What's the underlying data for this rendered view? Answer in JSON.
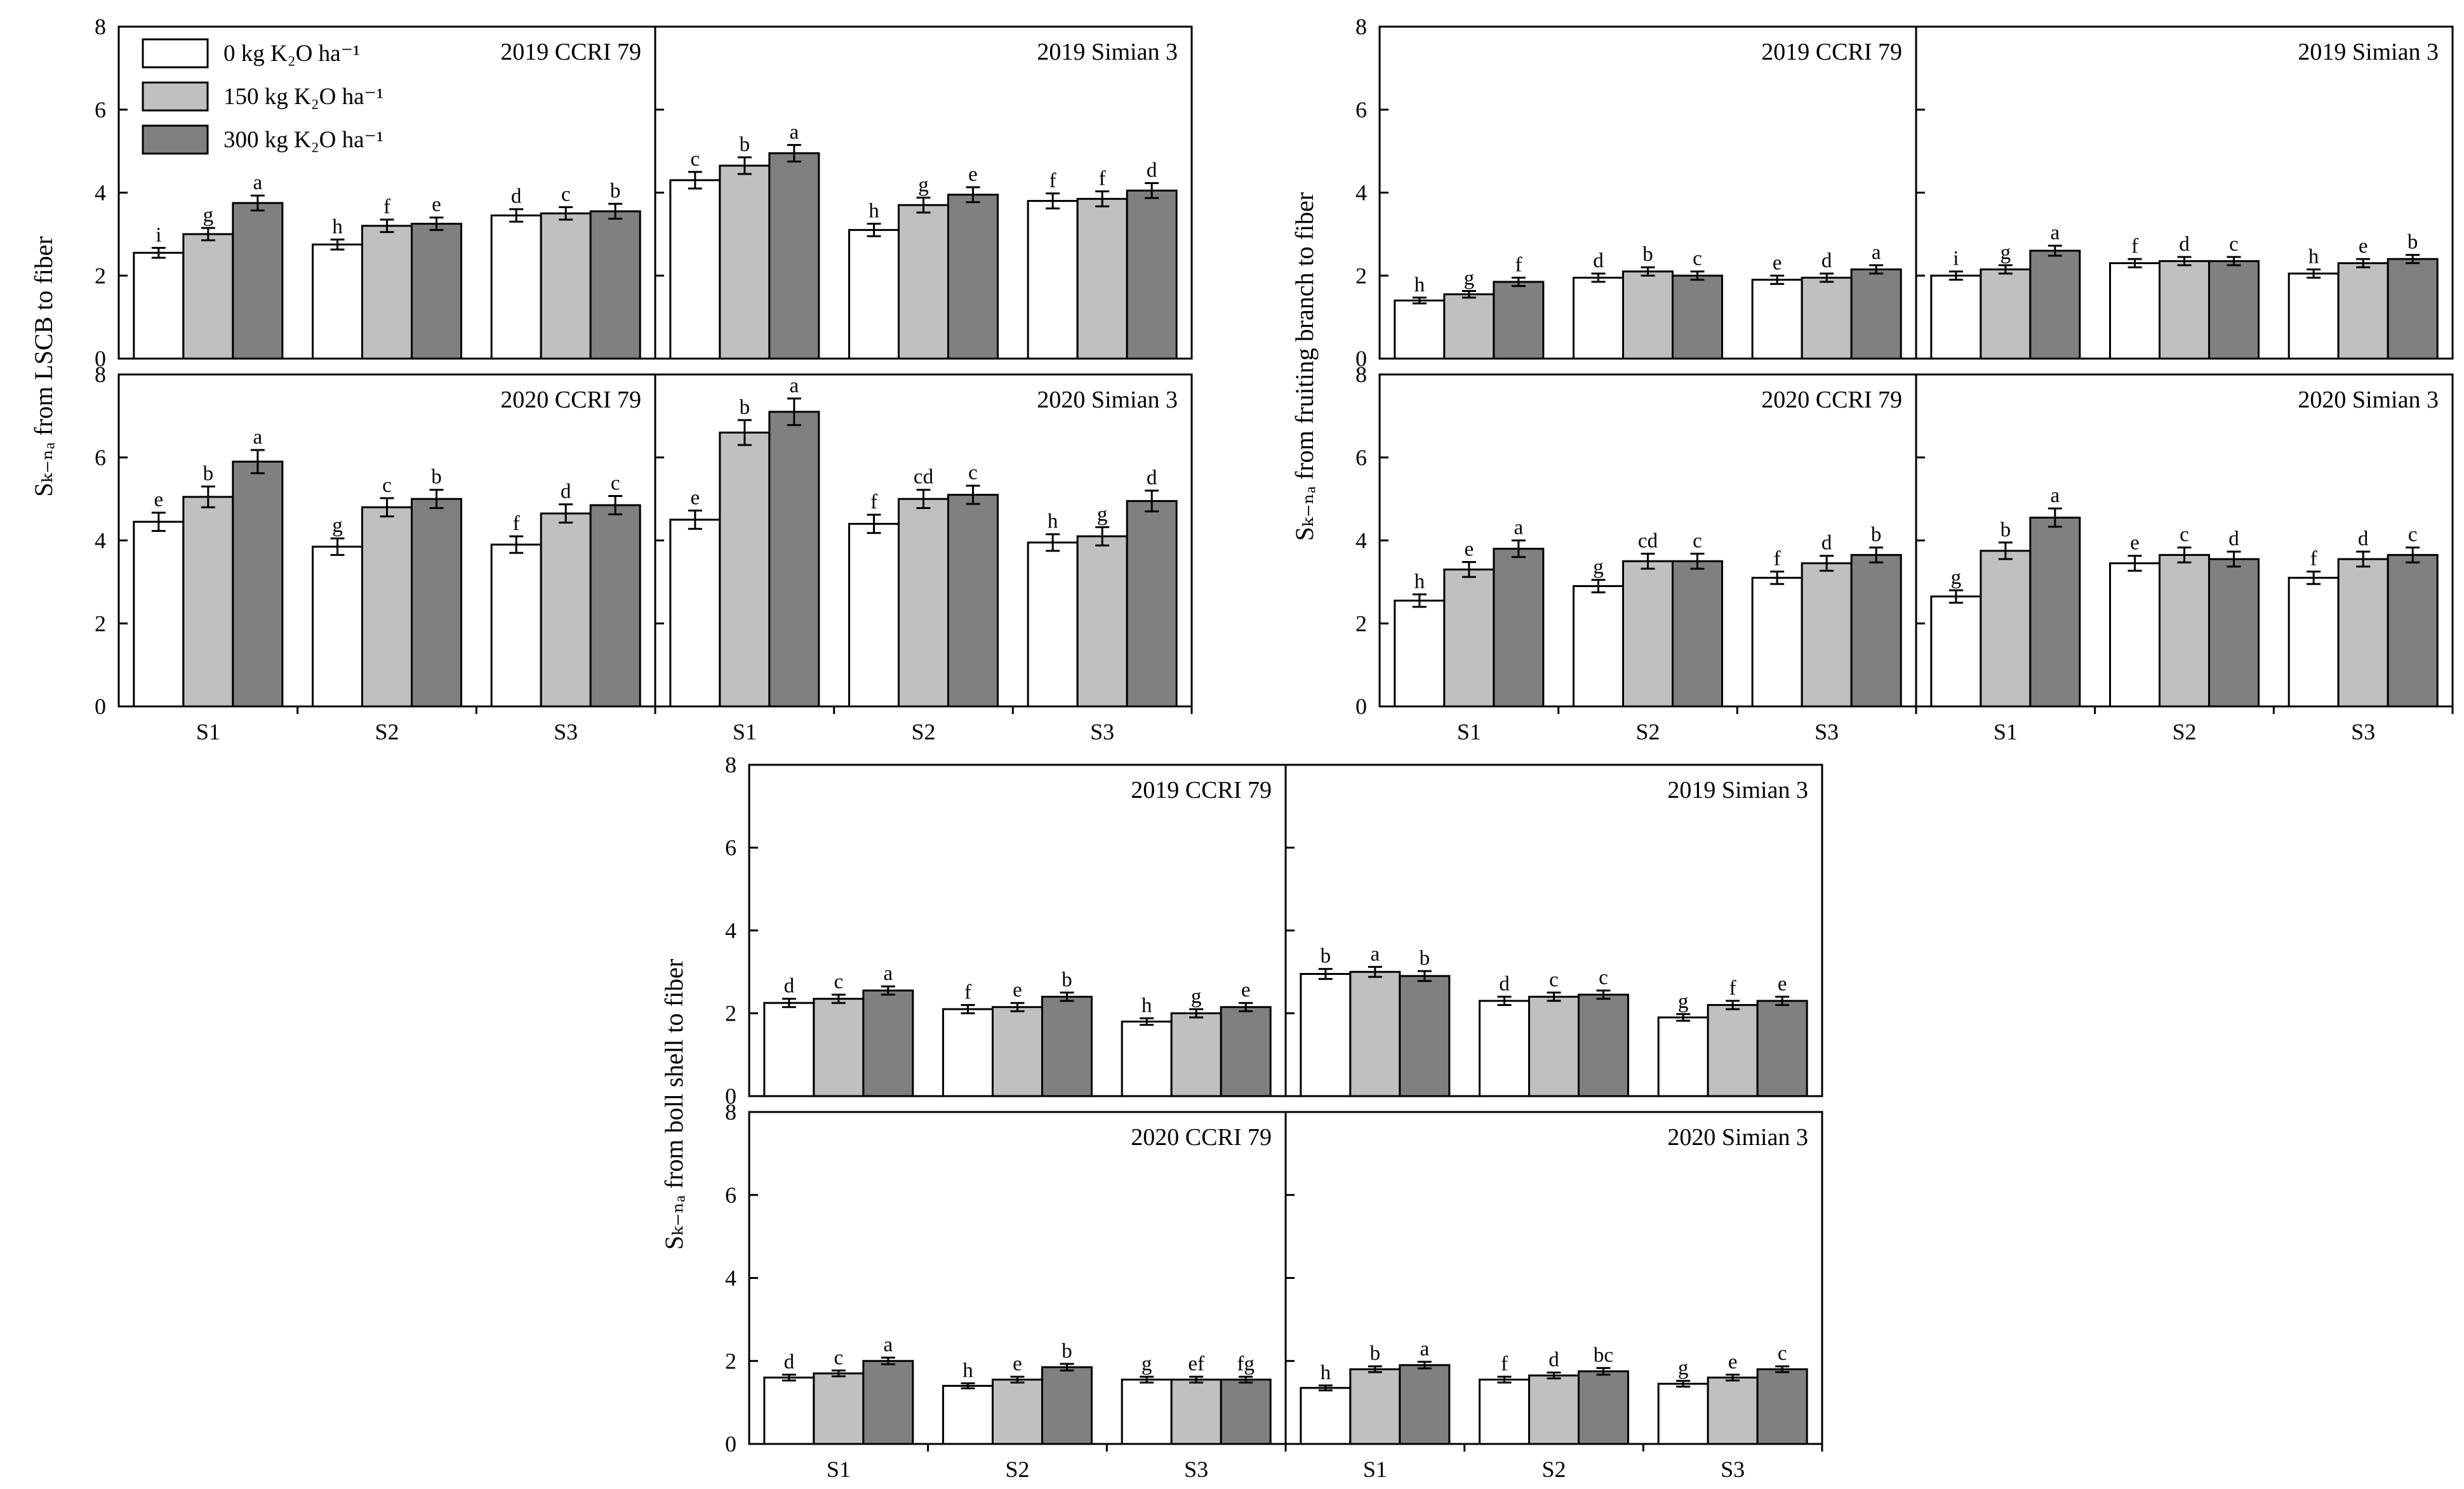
{
  "colors": {
    "k0": "#ffffff",
    "k150": "#c0c0c0",
    "k300": "#808080",
    "stroke": "#000000"
  },
  "legend": [
    {
      "label": "0 kg K₂O ha⁻¹",
      "color": "#ffffff"
    },
    {
      "label": "150 kg K₂O ha⁻¹",
      "color": "#c0c0c0"
    },
    {
      "label": "300 kg K₂O ha⁻¹",
      "color": "#808080"
    }
  ],
  "chart_data": [
    {
      "type": "bar",
      "ylabel": "Sₖ₋ₙₐ from LSCB to fiber",
      "ylim": [
        0,
        8
      ],
      "yticks": [
        "0",
        "2",
        "4",
        "6",
        "8"
      ],
      "categories": [
        "S1",
        "S2",
        "S3"
      ],
      "series_names": [
        "0 kg K₂O ha⁻¹",
        "150 kg K₂O ha⁻¹",
        "300 kg K₂O ha⁻¹"
      ],
      "panels": [
        {
          "title": "2019 CCRI 79",
          "values": [
            [
              2.55,
              3.0,
              3.75
            ],
            [
              2.75,
              3.2,
              3.25
            ],
            [
              3.45,
              3.5,
              3.55
            ]
          ],
          "errors": [
            [
              0.12,
              0.15,
              0.18
            ],
            [
              0.12,
              0.15,
              0.15
            ],
            [
              0.15,
              0.15,
              0.18
            ]
          ],
          "letters": [
            [
              "i",
              "g",
              "a"
            ],
            [
              "h",
              "f",
              "e"
            ],
            [
              "d",
              "c",
              "b"
            ]
          ]
        },
        {
          "title": "2019 Simian 3",
          "values": [
            [
              4.3,
              4.65,
              4.95
            ],
            [
              3.1,
              3.7,
              3.95
            ],
            [
              3.8,
              3.85,
              4.05
            ]
          ],
          "errors": [
            [
              0.2,
              0.2,
              0.2
            ],
            [
              0.15,
              0.18,
              0.18
            ],
            [
              0.18,
              0.18,
              0.18
            ]
          ],
          "letters": [
            [
              "c",
              "b",
              "a"
            ],
            [
              "h",
              "g",
              "e"
            ],
            [
              "f",
              "f",
              "d"
            ]
          ]
        },
        {
          "title": "2020 CCRI 79",
          "values": [
            [
              4.45,
              5.05,
              5.9
            ],
            [
              3.85,
              4.8,
              5.0
            ],
            [
              3.9,
              4.65,
              4.85
            ]
          ],
          "errors": [
            [
              0.22,
              0.25,
              0.28
            ],
            [
              0.2,
              0.22,
              0.22
            ],
            [
              0.2,
              0.22,
              0.22
            ]
          ],
          "letters": [
            [
              "e",
              "b",
              "a"
            ],
            [
              "g",
              "c",
              "b"
            ],
            [
              "f",
              "d",
              "c"
            ]
          ]
        },
        {
          "title": "2020 Simian 3",
          "values": [
            [
              4.5,
              6.6,
              7.1
            ],
            [
              4.4,
              5.0,
              5.1
            ],
            [
              3.95,
              4.1,
              4.95
            ]
          ],
          "errors": [
            [
              0.22,
              0.3,
              0.32
            ],
            [
              0.22,
              0.22,
              0.22
            ],
            [
              0.2,
              0.22,
              0.25
            ]
          ],
          "letters": [
            [
              "e",
              "b",
              "a"
            ],
            [
              "f",
              "cd",
              "c"
            ],
            [
              "h",
              "g",
              "d"
            ]
          ]
        }
      ]
    },
    {
      "type": "bar",
      "ylabel": "Sₖ₋ₙₐ from fruiting branch to fiber",
      "ylim": [
        0,
        8
      ],
      "yticks": [
        "0",
        "2",
        "4",
        "6",
        "8"
      ],
      "categories": [
        "S1",
        "S2",
        "S3"
      ],
      "series_names": [
        "0 kg K₂O ha⁻¹",
        "150 kg K₂O ha⁻¹",
        "300 kg K₂O ha⁻¹"
      ],
      "panels": [
        {
          "title": "2019 CCRI 79",
          "values": [
            [
              1.4,
              1.55,
              1.85
            ],
            [
              1.95,
              2.1,
              2.0
            ],
            [
              1.9,
              1.95,
              2.15
            ]
          ],
          "errors": [
            [
              0.07,
              0.08,
              0.1
            ],
            [
              0.1,
              0.1,
              0.1
            ],
            [
              0.1,
              0.1,
              0.1
            ]
          ],
          "letters": [
            [
              "h",
              "g",
              "f"
            ],
            [
              "d",
              "b",
              "c"
            ],
            [
              "e",
              "d",
              "a"
            ]
          ]
        },
        {
          "title": "2019 Simian 3",
          "values": [
            [
              2.0,
              2.15,
              2.6
            ],
            [
              2.3,
              2.35,
              2.35
            ],
            [
              2.05,
              2.3,
              2.4
            ]
          ],
          "errors": [
            [
              0.1,
              0.1,
              0.12
            ],
            [
              0.1,
              0.1,
              0.1
            ],
            [
              0.1,
              0.1,
              0.1
            ]
          ],
          "letters": [
            [
              "i",
              "g",
              "a"
            ],
            [
              "f",
              "d",
              "c"
            ],
            [
              "h",
              "e",
              "b"
            ]
          ]
        },
        {
          "title": "2020 CCRI 79",
          "values": [
            [
              2.55,
              3.3,
              3.8
            ],
            [
              2.9,
              3.5,
              3.5
            ],
            [
              3.1,
              3.45,
              3.65
            ]
          ],
          "errors": [
            [
              0.15,
              0.18,
              0.2
            ],
            [
              0.15,
              0.18,
              0.18
            ],
            [
              0.15,
              0.18,
              0.18
            ]
          ],
          "letters": [
            [
              "h",
              "e",
              "a"
            ],
            [
              "g",
              "cd",
              "c"
            ],
            [
              "f",
              "d",
              "b"
            ]
          ]
        },
        {
          "title": "2020 Simian 3",
          "values": [
            [
              2.65,
              3.75,
              4.55
            ],
            [
              3.45,
              3.65,
              3.55
            ],
            [
              3.1,
              3.55,
              3.65
            ]
          ],
          "errors": [
            [
              0.15,
              0.2,
              0.22
            ],
            [
              0.18,
              0.18,
              0.18
            ],
            [
              0.15,
              0.18,
              0.18
            ]
          ],
          "letters": [
            [
              "g",
              "b",
              "a"
            ],
            [
              "e",
              "c",
              "d"
            ],
            [
              "f",
              "d",
              "c"
            ]
          ]
        }
      ]
    },
    {
      "type": "bar",
      "ylabel": "Sₖ₋ₙₐ from boll shell to fiber",
      "ylim": [
        0,
        8
      ],
      "yticks": [
        "0",
        "2",
        "4",
        "6",
        "8"
      ],
      "categories": [
        "S1",
        "S2",
        "S3"
      ],
      "series_names": [
        "0 kg K₂O ha⁻¹",
        "150 kg K₂O ha⁻¹",
        "300 kg K₂O ha⁻¹"
      ],
      "panels": [
        {
          "title": "2019 CCRI 79",
          "values": [
            [
              2.25,
              2.35,
              2.55
            ],
            [
              2.1,
              2.15,
              2.4
            ],
            [
              1.8,
              2.0,
              2.15
            ]
          ],
          "errors": [
            [
              0.1,
              0.1,
              0.1
            ],
            [
              0.1,
              0.1,
              0.1
            ],
            [
              0.08,
              0.1,
              0.1
            ]
          ],
          "letters": [
            [
              "d",
              "c",
              "a"
            ],
            [
              "f",
              "e",
              "b"
            ],
            [
              "h",
              "g",
              "e"
            ]
          ]
        },
        {
          "title": "2019 Simian 3",
          "values": [
            [
              2.95,
              3.0,
              2.9
            ],
            [
              2.3,
              2.4,
              2.45
            ],
            [
              1.9,
              2.2,
              2.3
            ]
          ],
          "errors": [
            [
              0.12,
              0.12,
              0.12
            ],
            [
              0.1,
              0.1,
              0.1
            ],
            [
              0.08,
              0.1,
              0.1
            ]
          ],
          "letters": [
            [
              "b",
              "a",
              "b"
            ],
            [
              "d",
              "c",
              "c"
            ],
            [
              "g",
              "f",
              "e"
            ]
          ]
        },
        {
          "title": "2020 CCRI 79",
          "values": [
            [
              1.6,
              1.7,
              2.0
            ],
            [
              1.4,
              1.55,
              1.85
            ],
            [
              1.55,
              1.55,
              1.55
            ]
          ],
          "errors": [
            [
              0.07,
              0.07,
              0.08
            ],
            [
              0.06,
              0.07,
              0.08
            ],
            [
              0.07,
              0.07,
              0.07
            ]
          ],
          "letters": [
            [
              "d",
              "c",
              "a"
            ],
            [
              "h",
              "e",
              "b"
            ],
            [
              "g",
              "ef",
              "fg"
            ]
          ]
        },
        {
          "title": "2020 Simian 3",
          "values": [
            [
              1.35,
              1.8,
              1.9
            ],
            [
              1.55,
              1.65,
              1.75
            ],
            [
              1.45,
              1.6,
              1.8
            ]
          ],
          "errors": [
            [
              0.06,
              0.07,
              0.08
            ],
            [
              0.07,
              0.07,
              0.08
            ],
            [
              0.07,
              0.07,
              0.07
            ]
          ],
          "letters": [
            [
              "h",
              "b",
              "a"
            ],
            [
              "f",
              "d",
              "bc"
            ],
            [
              "g",
              "e",
              "c"
            ]
          ]
        }
      ]
    }
  ]
}
